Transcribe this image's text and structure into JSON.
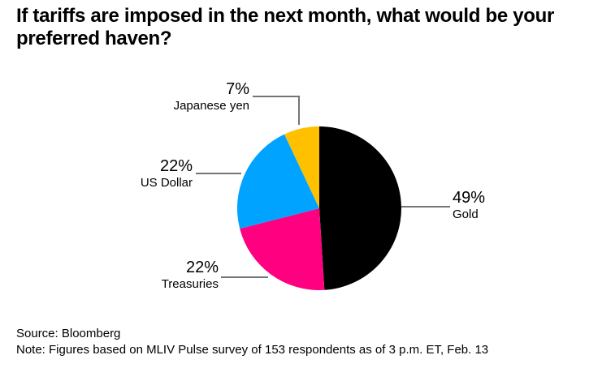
{
  "title": "If tariffs are imposed in the next month, what would be your preferred haven?",
  "chart_data": {
    "type": "pie",
    "title": "If tariffs are imposed in the next month, what would be your preferred haven?",
    "start_angle_deg": 0,
    "direction": "clockwise",
    "legend_position": "callout-labels",
    "slices": [
      {
        "label": "Gold",
        "value": 49,
        "pct": "49%",
        "color": "#000000"
      },
      {
        "label": "Treasuries",
        "value": 22,
        "pct": "22%",
        "color": "#FF0080"
      },
      {
        "label": "US Dollar",
        "value": 22,
        "pct": "22%",
        "color": "#00A3FF"
      },
      {
        "label": "Japanese yen",
        "value": 7,
        "pct": "7%",
        "color": "#FFC000"
      }
    ]
  },
  "footer": {
    "source": "Source: Bloomberg",
    "note": "Note: Figures based on MLIV Pulse survey of 153 respondents as of 3 p.m. ET, Feb. 13"
  },
  "colors": {
    "leader_line": "#757575",
    "text": "#000000",
    "background": "#ffffff"
  }
}
